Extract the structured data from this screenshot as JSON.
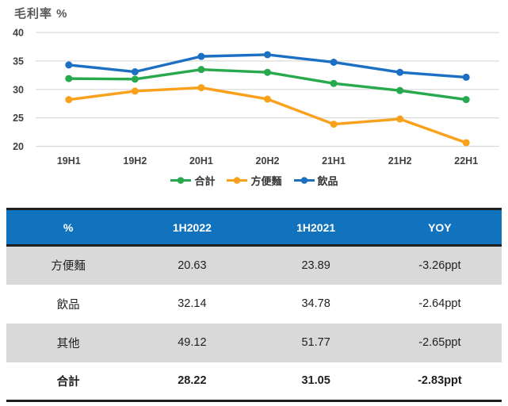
{
  "chart_data": [
    {
      "type": "line",
      "title": "毛利率 %",
      "ylabel": "",
      "xlabel": "",
      "categories": [
        "19H1",
        "19H2",
        "20H1",
        "20H2",
        "21H1",
        "21H2",
        "22H1"
      ],
      "series": [
        {
          "name": "合計",
          "color": "#28A94E",
          "values": [
            31.9,
            31.8,
            33.5,
            33.0,
            31.05,
            29.8,
            28.22
          ]
        },
        {
          "name": "方便麵",
          "color": "#F9A11B",
          "values": [
            28.2,
            29.7,
            30.3,
            28.3,
            23.89,
            24.8,
            20.63
          ]
        },
        {
          "name": "飲品",
          "color": "#1C70C4",
          "values": [
            34.3,
            33.1,
            35.8,
            36.1,
            34.78,
            33.0,
            32.14
          ]
        }
      ],
      "y_ticks": [
        40,
        35,
        30,
        25,
        20
      ],
      "ylim": [
        20,
        40
      ],
      "grid": true,
      "legend_position": "bottom"
    },
    {
      "type": "table",
      "headers": [
        "%",
        "1H2022",
        "1H2021",
        "YOY"
      ],
      "rows": [
        [
          "方便麵",
          "20.63",
          "23.89",
          "-3.26ppt"
        ],
        [
          "飲品",
          "32.14",
          "34.78",
          "-2.64ppt"
        ],
        [
          "其他",
          "49.12",
          "51.77",
          "-2.65ppt"
        ],
        [
          "合計",
          "28.22",
          "31.05",
          "-2.83ppt"
        ]
      ]
    }
  ],
  "colors": {
    "table_header_bg": "#1173BE",
    "table_alt_row_bg": "#D9D9D9",
    "dark_border": "#1f1f1f",
    "gridline": "#DBDBDB",
    "axis_text": "#404040",
    "series_total": "#28A94E",
    "series_instant_noodles": "#F9A11B",
    "series_beverages": "#1C70C4"
  }
}
